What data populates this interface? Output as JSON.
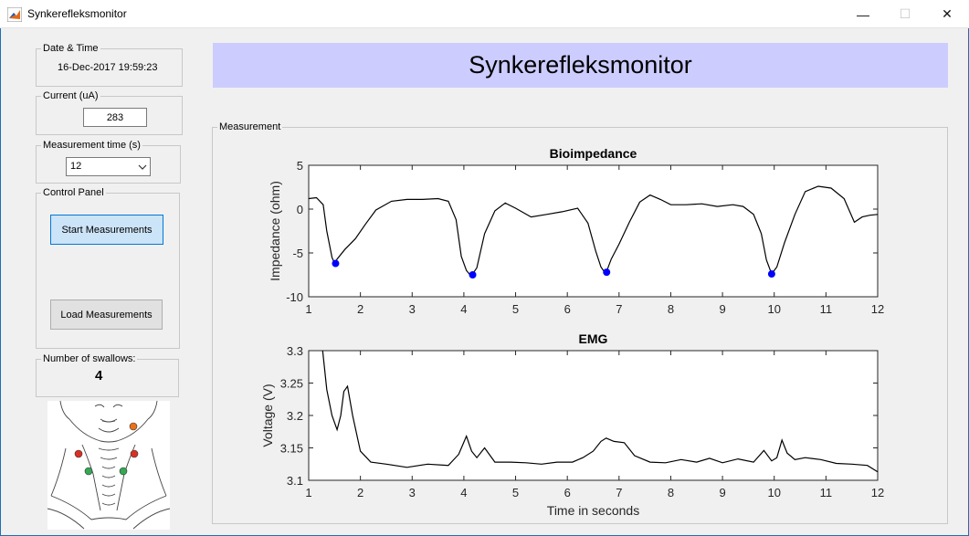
{
  "window": {
    "title": "Synkerefleksmonitor",
    "controls": {
      "minimize": "—",
      "maximize": "☐",
      "close": "✕"
    }
  },
  "sidebar": {
    "datetime": {
      "legend": "Date & Time",
      "value": "16-Dec-2017 19:59:23"
    },
    "current": {
      "legend": "Current (uA)",
      "value": "283"
    },
    "measurement_time": {
      "legend": "Measurement time (s)",
      "selected": "12"
    },
    "control_panel": {
      "legend": "Control Panel",
      "start_label": "Start Measurements",
      "load_label": "Load Measurements"
    },
    "swallows": {
      "legend": "Number of swallows:",
      "count": "4"
    }
  },
  "banner": {
    "title": "Synkerefleksmonitor"
  },
  "measurement_panel": {
    "legend": "Measurement"
  },
  "colors": {
    "banner_bg": "#ccccff",
    "marker": "#0000ff",
    "dot_red": "#d93025",
    "dot_green": "#34a853",
    "dot_orange": "#e8711a"
  },
  "chart_data": [
    {
      "type": "line",
      "title": "Bioimpedance",
      "xlabel": "",
      "ylabel": "Impedance (ohm)",
      "xlim": [
        1,
        12
      ],
      "ylim": [
        -10,
        5
      ],
      "xticks": [
        1,
        2,
        3,
        4,
        5,
        6,
        7,
        8,
        9,
        10,
        11,
        12
      ],
      "yticks": [
        -10,
        -5,
        0,
        5
      ],
      "x": [
        1.0,
        1.15,
        1.28,
        1.35,
        1.45,
        1.5,
        1.55,
        1.7,
        1.9,
        2.1,
        2.3,
        2.6,
        2.9,
        3.2,
        3.5,
        3.7,
        3.85,
        3.95,
        4.05,
        4.12,
        4.17,
        4.25,
        4.4,
        4.6,
        4.8,
        5.0,
        5.3,
        5.6,
        5.9,
        6.2,
        6.4,
        6.55,
        6.65,
        6.72,
        6.76,
        6.85,
        7.0,
        7.2,
        7.4,
        7.6,
        7.8,
        8.0,
        8.3,
        8.6,
        8.9,
        9.2,
        9.4,
        9.6,
        9.75,
        9.85,
        9.95,
        10.05,
        10.2,
        10.4,
        10.6,
        10.85,
        11.1,
        11.35,
        11.55,
        11.7,
        11.85,
        12.0
      ],
      "series": [
        {
          "values": [
            1.2,
            1.3,
            0.5,
            -2.5,
            -5.5,
            -6.2,
            -5.7,
            -4.6,
            -3.4,
            -1.7,
            -0.1,
            0.9,
            1.1,
            1.1,
            1.2,
            0.9,
            -1.2,
            -5.4,
            -7.0,
            -7.5,
            -7.4,
            -6.7,
            -2.8,
            -0.2,
            0.7,
            0.1,
            -0.9,
            -0.6,
            -0.3,
            0.1,
            -1.6,
            -4.8,
            -6.6,
            -7.2,
            -7.1,
            -5.7,
            -4.0,
            -1.5,
            0.8,
            1.6,
            1.1,
            0.5,
            0.5,
            0.6,
            0.3,
            0.5,
            0.3,
            -0.6,
            -2.8,
            -5.8,
            -7.4,
            -6.6,
            -3.8,
            -0.6,
            2.0,
            2.6,
            2.4,
            1.2,
            -1.5,
            -0.9,
            -0.7,
            -0.6
          ]
        }
      ],
      "markers": {
        "x": [
          1.52,
          4.17,
          6.76,
          9.95
        ],
        "y": [
          -6.2,
          -7.5,
          -7.2,
          -7.4
        ]
      }
    },
    {
      "type": "line",
      "title": "EMG",
      "xlabel": "Time in seconds",
      "ylabel": "Voltage (V)",
      "xlim": [
        1,
        12
      ],
      "ylim": [
        3.1,
        3.3
      ],
      "xticks": [
        1,
        2,
        3,
        4,
        5,
        6,
        7,
        8,
        9,
        10,
        11,
        12
      ],
      "yticks": [
        3.1,
        3.15,
        3.2,
        3.25,
        3.3
      ],
      "yticklabels": [
        "3.1",
        "3.15",
        "3.2",
        "3.25",
        "3.3"
      ],
      "x": [
        1.27,
        1.35,
        1.45,
        1.55,
        1.62,
        1.68,
        1.75,
        1.85,
        2.0,
        2.2,
        2.5,
        2.9,
        3.3,
        3.7,
        3.9,
        4.05,
        4.15,
        4.25,
        4.4,
        4.6,
        4.9,
        5.2,
        5.5,
        5.8,
        6.1,
        6.3,
        6.5,
        6.65,
        6.75,
        6.9,
        7.1,
        7.3,
        7.6,
        7.9,
        8.2,
        8.5,
        8.75,
        9.0,
        9.3,
        9.6,
        9.8,
        9.95,
        10.05,
        10.15,
        10.25,
        10.4,
        10.6,
        10.9,
        11.2,
        11.5,
        11.8,
        12.0
      ],
      "series": [
        {
          "values": [
            3.3,
            3.24,
            3.2,
            3.178,
            3.2,
            3.237,
            3.245,
            3.2,
            3.145,
            3.128,
            3.125,
            3.12,
            3.125,
            3.123,
            3.14,
            3.168,
            3.145,
            3.135,
            3.15,
            3.128,
            3.128,
            3.127,
            3.125,
            3.128,
            3.128,
            3.135,
            3.145,
            3.16,
            3.165,
            3.16,
            3.158,
            3.138,
            3.128,
            3.127,
            3.132,
            3.128,
            3.134,
            3.127,
            3.133,
            3.128,
            3.146,
            3.13,
            3.135,
            3.162,
            3.142,
            3.132,
            3.135,
            3.132,
            3.126,
            3.125,
            3.123,
            3.113
          ]
        }
      ]
    }
  ]
}
